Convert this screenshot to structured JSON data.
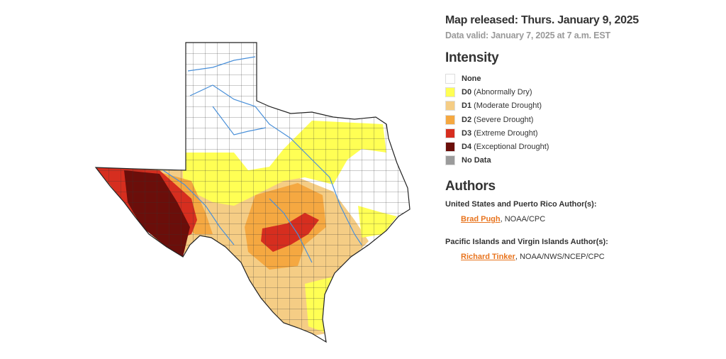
{
  "header": {
    "released": "Map released: Thurs. January 9, 2025",
    "valid": "Data valid: January 7, 2025 at 7 a.m. EST"
  },
  "legend": {
    "title": "Intensity",
    "items": [
      {
        "code": "None",
        "color": "#ffffff"
      },
      {
        "code": "D0",
        "label": "(Abnormally Dry)",
        "color": "#ffff54"
      },
      {
        "code": "D1",
        "label": "(Moderate Drought)",
        "color": "#f5cd85"
      },
      {
        "code": "D2",
        "label": "(Severe Drought)",
        "color": "#f5a841"
      },
      {
        "code": "D3",
        "label": "(Extreme Drought)",
        "color": "#d62e1f"
      },
      {
        "code": "D4",
        "label": "(Exceptional Drought)",
        "color": "#6b0e0a"
      },
      {
        "code": "No Data",
        "color": "#9b9b9b"
      }
    ]
  },
  "authors": {
    "title": "Authors",
    "groups": [
      {
        "title": "United States and Puerto Rico Author(s):",
        "name": "Brad Pugh",
        "affiliation": ", NOAA/CPC"
      },
      {
        "title": "Pacific Islands and Virgin Islands Author(s):",
        "name": "Richard Tinker",
        "affiliation": ", NOAA/NWS/NCEP/CPC"
      }
    ]
  }
}
